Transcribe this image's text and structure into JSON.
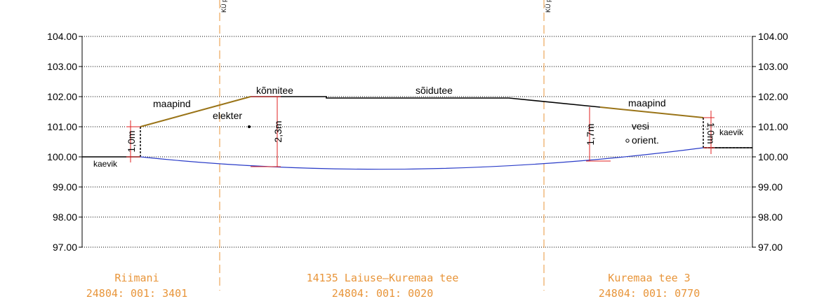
{
  "axis": {
    "left_labels": [
      "104.00",
      "103.00",
      "102.00",
      "101.00",
      "100.00",
      "99.00",
      "98.00",
      "97.00"
    ],
    "right_labels": [
      "104.00",
      "103.00",
      "102.00",
      "101.00",
      "100.00",
      "99.00",
      "98.00",
      "97.00"
    ]
  },
  "boundaries": [
    "KÜ piir",
    "KÜ piir"
  ],
  "labels": {
    "maapind_left": "maapind",
    "konnitee": "kõnnitee",
    "soidutee": "sõidutee",
    "maapind_right": "maapind",
    "elekter": "elekter",
    "vesi": "vesi",
    "orient": "orient.",
    "kaevik_left": "kaevik",
    "kaevik_right": "kaevik"
  },
  "dimensions": [
    "1,0m",
    "2,3m",
    "1,7m",
    "1,0m"
  ],
  "parcels": [
    {
      "name": "Riimani",
      "code": "24804: 001: 3401"
    },
    {
      "name": "14135 Laiuse—Kuremaa tee",
      "code": "24804: 001: 0020"
    },
    {
      "name": "Kuremaa tee 3",
      "code": "24804: 001: 0770"
    }
  ]
}
